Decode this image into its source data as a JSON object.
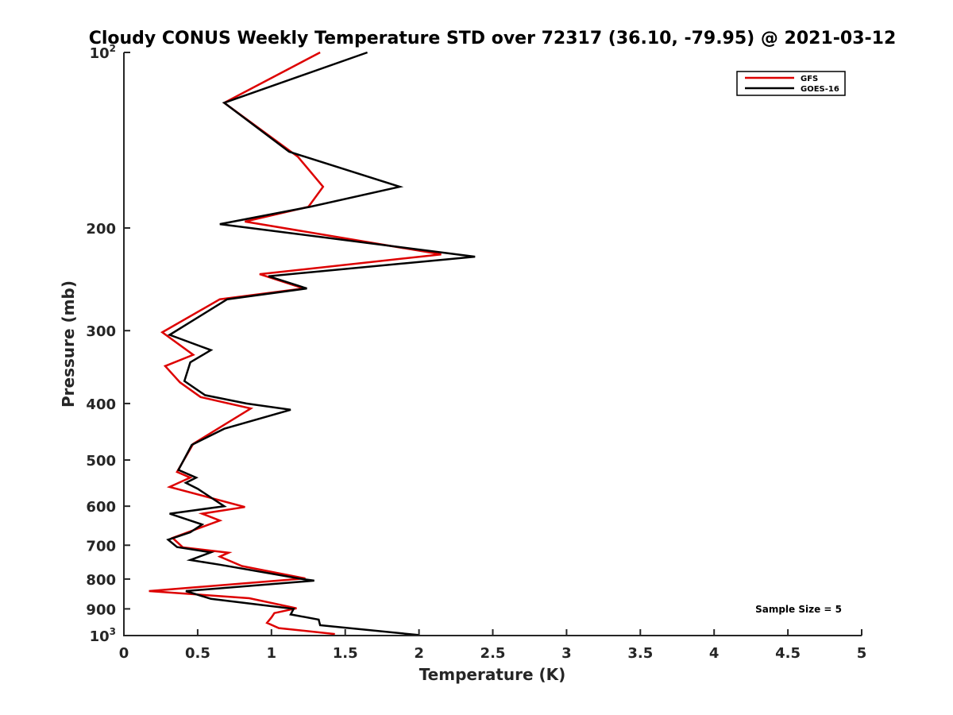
{
  "chart_data": {
    "type": "line",
    "title": "Cloudy CONUS Weekly Temperature STD over 72317 (36.10, -79.95) @ 2021-03-12",
    "xlabel": "Temperature (K)",
    "ylabel": "Pressure (mb)",
    "xlim": [
      0,
      5
    ],
    "ylim": [
      100,
      1000
    ],
    "yscale": "log",
    "y_reversed": true,
    "grid": false,
    "legend_position": "top-right",
    "x_ticks": [
      "0",
      "0.5",
      "1",
      "1.5",
      "2",
      "2.5",
      "3",
      "3.5",
      "4",
      "4.5",
      "5"
    ],
    "y_ticks": [
      {
        "value": 100,
        "base": "10",
        "exp": "2"
      },
      {
        "value": 200,
        "label": "200"
      },
      {
        "value": 300,
        "label": "300"
      },
      {
        "value": 400,
        "label": "400"
      },
      {
        "value": 500,
        "label": "500"
      },
      {
        "value": 600,
        "label": "600"
      },
      {
        "value": 700,
        "label": "700"
      },
      {
        "value": 800,
        "label": "800"
      },
      {
        "value": 900,
        "label": "900"
      },
      {
        "value": 1000,
        "base": "10",
        "exp": "3"
      }
    ],
    "annotation": "Sample Size = 5",
    "series": [
      {
        "name": "GFS",
        "color": "#dd0000",
        "x": [
          1.33,
          0.68,
          1.18,
          1.35,
          1.25,
          0.82,
          2.15,
          0.92,
          1.22,
          0.65,
          0.26,
          0.47,
          0.28,
          0.38,
          0.52,
          0.86,
          0.47,
          0.36,
          0.45,
          0.31,
          0.82,
          0.53,
          0.65,
          0.33,
          0.4,
          0.71,
          0.65,
          0.8,
          1.23,
          0.17,
          0.85,
          1.17,
          1.02,
          1.0,
          0.97,
          1.05,
          1.43
        ],
        "y": [
          100,
          122,
          151,
          170,
          184,
          195,
          222,
          240,
          254,
          265,
          302,
          330,
          345,
          368,
          390,
          408,
          469,
          524,
          536,
          556,
          602,
          618,
          635,
          680,
          706,
          721,
          732,
          760,
          798,
          839,
          863,
          898,
          915,
          931,
          951,
          971,
          994
        ]
      },
      {
        "name": "GOES-16",
        "color": "#000000",
        "x": [
          1.65,
          0.68,
          1.12,
          1.87,
          1.26,
          0.65,
          2.38,
          0.98,
          1.24,
          0.7,
          0.31,
          0.59,
          0.45,
          0.41,
          0.55,
          0.83,
          1.13,
          0.68,
          0.46,
          0.37,
          0.49,
          0.42,
          0.5,
          0.68,
          0.31,
          0.53,
          0.45,
          0.3,
          0.36,
          0.59,
          0.45,
          0.65,
          1.21,
          1.29,
          0.42,
          0.59,
          1.15,
          1.13,
          1.32,
          1.33,
          2.0
        ],
        "y": [
          100,
          122,
          148,
          170,
          184,
          197,
          224,
          242,
          254,
          265,
          305,
          324,
          340,
          366,
          387,
          400,
          410,
          442,
          471,
          520,
          536,
          547,
          560,
          600,
          618,
          645,
          665,
          685,
          705,
          720,
          742,
          756,
          800,
          805,
          839,
          865,
          900,
          920,
          939,
          960,
          998
        ]
      }
    ]
  }
}
